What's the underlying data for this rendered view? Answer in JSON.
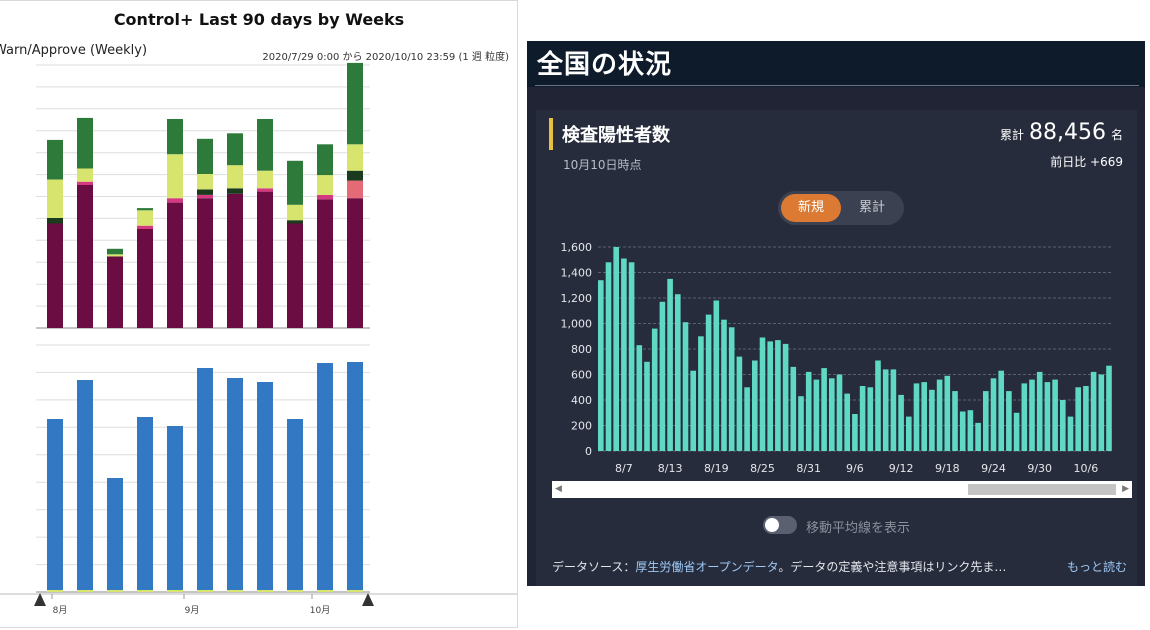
{
  "left": {
    "title": "Control+ Last 90 days by Weeks",
    "subtitle": "Warn/Approve (Weekly)",
    "range": "2020/7/29 0:00 から 2020/10/10 23:59 (1 週 粒度)",
    "month_labels": [
      "8月",
      "9月",
      "10月"
    ],
    "colors": {
      "maroon": "#6b0c43",
      "pink": "#d43a82",
      "darkgreen": "#1c3a1e",
      "yellow": "#d7e56f",
      "green": "#2d7a3a",
      "salmon": "#e46a78",
      "blue": "#3378c2"
    },
    "stacked": [
      {
        "maroon": 95,
        "pink": 0,
        "darkgreen": 5,
        "yellow": 35,
        "green": 36
      },
      {
        "maroon": 130,
        "pink": 3,
        "darkgreen": 0,
        "yellow": 12,
        "green": 46
      },
      {
        "maroon": 65,
        "pink": 0,
        "darkgreen": 0,
        "yellow": 2,
        "green": 5
      },
      {
        "maroon": 90,
        "pink": 3,
        "darkgreen": 0,
        "yellow": 14,
        "green": 2
      },
      {
        "maroon": 114,
        "pink": 4,
        "darkgreen": 0,
        "yellow": 40,
        "green": 32
      },
      {
        "maroon": 118,
        "pink": 3,
        "darkgreen": 5,
        "yellow": 14,
        "green": 32
      },
      {
        "maroon": 122,
        "pink": 0,
        "darkgreen": 5,
        "yellow": 21,
        "green": 29
      },
      {
        "maroon": 124,
        "pink": 3,
        "darkgreen": 0,
        "yellow": 16,
        "green": 47
      },
      {
        "maroon": 95,
        "pink": 0,
        "darkgreen": 3,
        "yellow": 14,
        "green": 40
      },
      {
        "maroon": 117,
        "pink": 4,
        "darkgreen": 0,
        "yellow": 18,
        "green": 28
      },
      {
        "maroon": 118,
        "salmon": 16,
        "darkgreen": 9,
        "yellow": 24,
        "green": 74
      }
    ],
    "blue_values": [
      173,
      212,
      114,
      175,
      166,
      224,
      214,
      210,
      173,
      229,
      230
    ]
  },
  "right": {
    "header_title": "全国の状況",
    "card_title": "検査陽性者数",
    "card_date": "10月10日時点",
    "total_label": "累計",
    "total_value": "88,456",
    "total_unit": "名",
    "diff_text": "前日比 +669",
    "toggle": {
      "new": "新規",
      "total": "累計"
    },
    "moving_average_label": "移動平均線を表示",
    "source_prefix": "データソース：",
    "source_link": "厚生労働省オープンデータ",
    "source_suffix": "。データの定義や注意事項はリンク先ま…",
    "more_link": "もっと読む",
    "chart_data": {
      "type": "bar",
      "ylim": [
        0,
        1600
      ],
      "ytick_labels": [
        "0",
        "200",
        "400",
        "600",
        "800",
        "1,000",
        "1,200",
        "1,400",
        "1,600"
      ],
      "xtick_labels": [
        "8/7",
        "8/13",
        "8/19",
        "8/25",
        "8/31",
        "9/6",
        "9/12",
        "9/18",
        "9/24",
        "9/30",
        "10/6"
      ],
      "bar_color": "#5fd9c4",
      "values": [
        1340,
        1480,
        1600,
        1510,
        1480,
        830,
        700,
        960,
        1170,
        1350,
        1230,
        1010,
        630,
        900,
        1070,
        1180,
        1030,
        970,
        740,
        500,
        710,
        890,
        860,
        870,
        840,
        660,
        430,
        620,
        560,
        650,
        570,
        600,
        450,
        290,
        510,
        500,
        710,
        640,
        640,
        440,
        270,
        530,
        540,
        480,
        560,
        590,
        470,
        310,
        320,
        220,
        470,
        570,
        630,
        470,
        300,
        530,
        560,
        620,
        540,
        560,
        400,
        270,
        500,
        510,
        620,
        600,
        669
      ]
    }
  }
}
